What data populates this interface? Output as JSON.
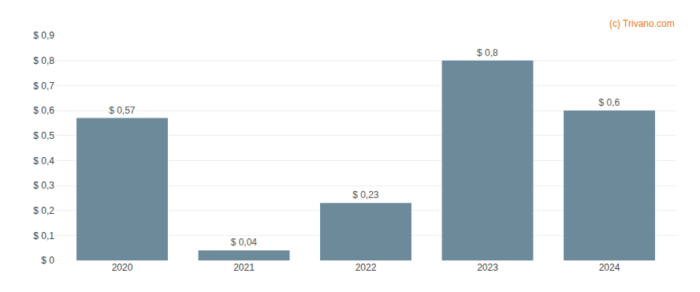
{
  "chart_data": {
    "type": "bar",
    "categories": [
      "2020",
      "2021",
      "2022",
      "2023",
      "2024"
    ],
    "values": [
      0.57,
      0.04,
      0.23,
      0.8,
      0.6
    ],
    "value_labels": [
      "$ 0,57",
      "$ 0,04",
      "$ 0,23",
      "$ 0,8",
      "$ 0,6"
    ],
    "data_labels": true,
    "color": "#6d8a9a",
    "ylim": [
      0,
      0.9
    ],
    "yticks": [
      {
        "value": 0.0,
        "label": "$ 0"
      },
      {
        "value": 0.1,
        "label": "$ 0,1"
      },
      {
        "value": 0.2,
        "label": "$ 0,2"
      },
      {
        "value": 0.3,
        "label": "$ 0,3"
      },
      {
        "value": 0.4,
        "label": "$ 0,4"
      },
      {
        "value": 0.5,
        "label": "$ 0,5"
      },
      {
        "value": 0.6,
        "label": "$ 0,6"
      },
      {
        "value": 0.7,
        "label": "$ 0,7"
      },
      {
        "value": 0.8,
        "label": "$ 0,8"
      },
      {
        "value": 0.9,
        "label": "$ 0,9"
      }
    ],
    "grid": true,
    "annotations": [
      {
        "text": "(c) Trivano.com",
        "color": "#e87722"
      }
    ]
  }
}
